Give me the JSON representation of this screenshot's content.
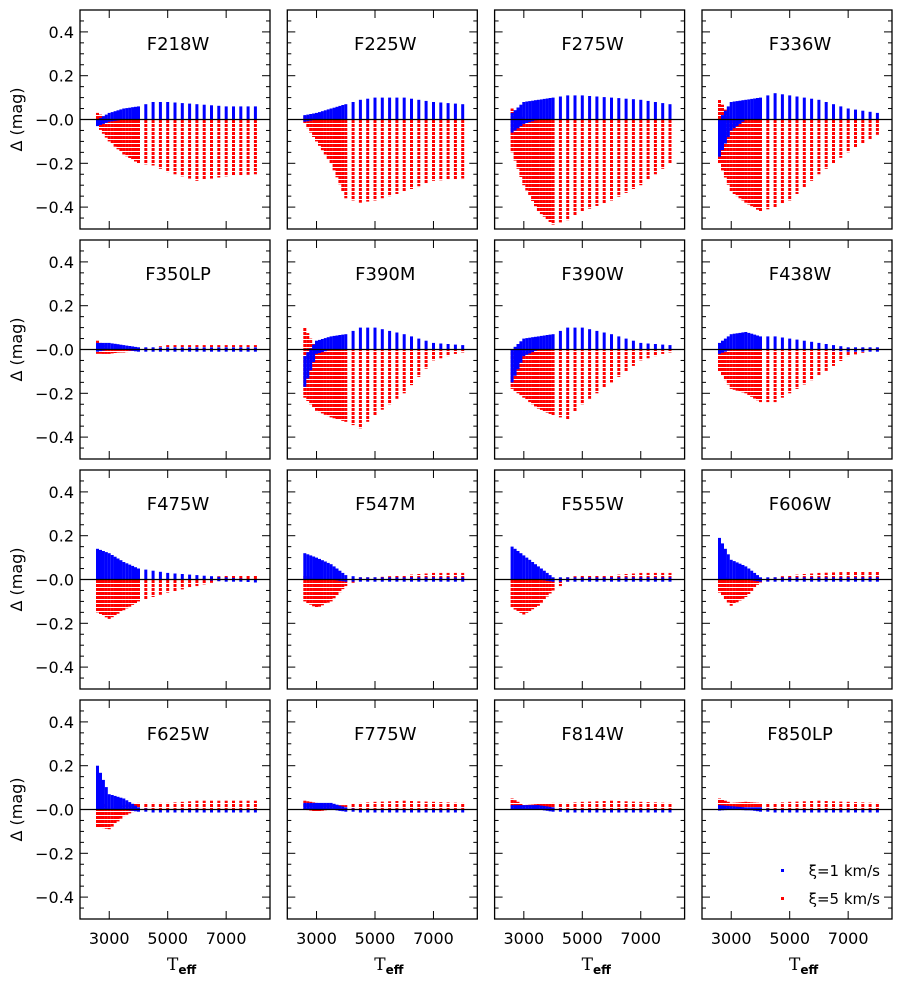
{
  "chart_data": {
    "type": "scatter",
    "layout": "4x4 grid of panels",
    "xlabel": "T",
    "xlabel_sub": "eff",
    "ylabel": "Δ (mag)",
    "xlim": [
      2000,
      8500
    ],
    "ylim": [
      -0.5,
      0.5
    ],
    "xticks": [
      "3000",
      "5000",
      "7000"
    ],
    "yticks": [
      "0.4",
      "0.2",
      "−0.0",
      "−0.2",
      "−0.4"
    ],
    "reference_line_y": 0,
    "grid": false,
    "legend": {
      "placement": "bottom-right of last panel",
      "entries": [
        {
          "label": "ξ=1 km/s",
          "color": "#0000ff"
        },
        {
          "label": "ξ=5 km/s",
          "color": "#ff0000"
        }
      ]
    },
    "envelope_teff": [
      2600,
      3000,
      3500,
      4000,
      4500,
      5000,
      6000,
      7000,
      8000
    ],
    "panels": [
      {
        "title": "F218W",
        "blue": {
          "upper": [
            0.0,
            0.03,
            0.05,
            0.06,
            0.08,
            0.08,
            0.07,
            0.06,
            0.06
          ],
          "lower": [
            -0.03,
            -0.01,
            0,
            0,
            0,
            0,
            0,
            0,
            0
          ]
        },
        "red": {
          "upper": [
            0.03,
            0,
            0,
            0,
            0,
            0,
            0,
            0,
            0
          ],
          "lower": [
            -0.03,
            -0.1,
            -0.16,
            -0.2,
            -0.21,
            -0.24,
            -0.28,
            -0.26,
            -0.25
          ]
        }
      },
      {
        "title": "F225W",
        "blue": {
          "upper": [
            0.02,
            0.03,
            0.05,
            0.07,
            0.09,
            0.1,
            0.1,
            0.08,
            0.07
          ],
          "lower": [
            -0.01,
            0,
            0,
            0,
            0,
            0,
            0,
            0,
            0
          ]
        },
        "red": {
          "upper": [
            0.02,
            0,
            0,
            0,
            0,
            0,
            0,
            0,
            0
          ],
          "lower": [
            -0.02,
            -0.1,
            -0.2,
            -0.36,
            -0.38,
            -0.37,
            -0.33,
            -0.28,
            -0.27
          ]
        }
      },
      {
        "title": "F275W",
        "blue": {
          "upper": [
            0.03,
            0.08,
            0.09,
            0.1,
            0.11,
            0.11,
            0.1,
            0.09,
            0.07
          ],
          "lower": [
            -0.06,
            -0.02,
            0,
            0,
            0,
            0,
            0,
            0,
            0
          ]
        },
        "red": {
          "upper": [
            0.05,
            0,
            0,
            0,
            0,
            0,
            0,
            0,
            0
          ],
          "lower": [
            -0.15,
            -0.3,
            -0.42,
            -0.48,
            -0.46,
            -0.42,
            -0.37,
            -0.3,
            -0.2
          ]
        }
      },
      {
        "title": "F336W",
        "blue": {
          "upper": [
            0.0,
            0.08,
            0.09,
            0.1,
            0.12,
            0.11,
            0.09,
            0.05,
            0.03
          ],
          "lower": [
            -0.17,
            -0.05,
            0,
            0,
            0,
            0,
            0,
            0,
            0
          ]
        },
        "red": {
          "upper": [
            0.09,
            0,
            0,
            0,
            0,
            0,
            0,
            0,
            0
          ],
          "lower": [
            -0.2,
            -0.33,
            -0.38,
            -0.42,
            -0.4,
            -0.37,
            -0.25,
            -0.15,
            -0.07
          ]
        }
      },
      {
        "title": "F350LP",
        "blue": {
          "upper": [
            0.03,
            0.03,
            0.02,
            0.01,
            0.01,
            0.01,
            0.01,
            0.01,
            0.01
          ],
          "lower": [
            -0.01,
            0,
            0,
            -0.01,
            -0.01,
            -0.01,
            -0.01,
            -0.01,
            -0.01
          ]
        },
        "red": {
          "upper": [
            0.04,
            0,
            0,
            0.01,
            0.01,
            0.02,
            0.02,
            0.02,
            0.02
          ],
          "lower": [
            -0.02,
            -0.02,
            -0.01,
            0,
            0,
            0,
            0,
            0,
            0
          ]
        }
      },
      {
        "title": "F390M",
        "blue": {
          "upper": [
            -0.03,
            0.04,
            0.06,
            0.07,
            0.1,
            0.1,
            0.07,
            0.03,
            0.02
          ],
          "lower": [
            -0.17,
            -0.02,
            0,
            0,
            0,
            0,
            0,
            0,
            0
          ]
        },
        "red": {
          "upper": [
            0.1,
            0,
            0,
            0,
            0,
            0,
            0,
            0,
            0
          ],
          "lower": [
            -0.22,
            -0.28,
            -0.31,
            -0.33,
            -0.36,
            -0.3,
            -0.2,
            -0.05,
            -0.01
          ]
        }
      },
      {
        "title": "F390W",
        "blue": {
          "upper": [
            0.0,
            0.05,
            0.06,
            0.07,
            0.1,
            0.1,
            0.07,
            0.03,
            0.02
          ],
          "lower": [
            -0.15,
            -0.03,
            0,
            0,
            0,
            0,
            0,
            0,
            0
          ]
        },
        "red": {
          "upper": [
            0,
            0,
            0,
            0,
            0,
            0,
            0,
            0,
            0
          ],
          "lower": [
            -0.18,
            -0.22,
            -0.27,
            -0.3,
            -0.32,
            -0.25,
            -0.15,
            -0.05,
            -0.01
          ]
        }
      },
      {
        "title": "F438W",
        "blue": {
          "upper": [
            0.03,
            0.07,
            0.08,
            0.06,
            0.06,
            0.05,
            0.03,
            0.01,
            0.01
          ],
          "lower": [
            -0.02,
            0,
            0,
            0,
            0,
            0,
            0,
            -0.01,
            -0.01
          ]
        },
        "red": {
          "upper": [
            0.02,
            0,
            0,
            0,
            0,
            0,
            0,
            0.01,
            0.01
          ],
          "lower": [
            -0.1,
            -0.18,
            -0.2,
            -0.24,
            -0.24,
            -0.2,
            -0.12,
            -0.03,
            0
          ]
        }
      },
      {
        "title": "F475W",
        "blue": {
          "upper": [
            0.14,
            0.12,
            0.08,
            0.05,
            0.04,
            0.03,
            0.02,
            0.01,
            0.0
          ],
          "lower": [
            0,
            0,
            0,
            0,
            0,
            0,
            0,
            -0.01,
            -0.01
          ]
        },
        "red": {
          "upper": [
            0,
            0,
            0,
            0,
            0,
            0,
            0,
            0.02,
            0.02
          ],
          "lower": [
            -0.15,
            -0.18,
            -0.14,
            -0.1,
            -0.08,
            -0.06,
            -0.03,
            0,
            0
          ]
        }
      },
      {
        "title": "F547M",
        "blue": {
          "upper": [
            0.12,
            0.1,
            0.07,
            0.02,
            0.01,
            0.01,
            0.01,
            0.01,
            0.01
          ],
          "lower": [
            0,
            0,
            0,
            -0.01,
            -0.01,
            -0.01,
            -0.01,
            -0.01,
            -0.01
          ]
        },
        "red": {
          "upper": [
            0.02,
            0,
            0,
            0,
            0.01,
            0.01,
            0.02,
            0.03,
            0.03
          ],
          "lower": [
            -0.1,
            -0.13,
            -0.1,
            -0.03,
            0,
            0,
            0,
            0,
            0
          ]
        }
      },
      {
        "title": "F555W",
        "blue": {
          "upper": [
            0.15,
            0.11,
            0.06,
            0.01,
            0.01,
            0.01,
            0.01,
            0.01,
            0.01
          ],
          "lower": [
            0,
            0,
            0,
            -0.01,
            -0.01,
            -0.01,
            -0.01,
            -0.01,
            -0.01
          ]
        },
        "red": {
          "upper": [
            0,
            0,
            0,
            0,
            0.01,
            0.02,
            0.02,
            0.03,
            0.03
          ],
          "lower": [
            -0.13,
            -0.16,
            -0.12,
            -0.05,
            -0.01,
            0,
            0,
            0,
            0
          ]
        }
      },
      {
        "title": "F606W",
        "blue": {
          "upper": [
            0.19,
            0.09,
            0.06,
            0.01,
            0.01,
            0.01,
            0.01,
            0.01,
            0.01
          ],
          "lower": [
            0,
            0,
            0,
            -0.01,
            -0.01,
            -0.01,
            -0.01,
            -0.01,
            -0.01
          ]
        },
        "red": {
          "upper": [
            0.02,
            0,
            0,
            0,
            0.01,
            0.02,
            0.03,
            0.035,
            0.035
          ],
          "lower": [
            -0.06,
            -0.12,
            -0.08,
            -0.01,
            0,
            0,
            0,
            0,
            0
          ]
        }
      },
      {
        "title": "F625W",
        "blue": {
          "upper": [
            0.2,
            0.07,
            0.05,
            0.01,
            0,
            0,
            0,
            0,
            0
          ],
          "lower": [
            0,
            0,
            0,
            -0.01,
            -0.01,
            -0.01,
            -0.01,
            -0.01,
            -0.01
          ]
        },
        "red": {
          "upper": [
            0.05,
            0,
            0.02,
            0.03,
            0.03,
            0.03,
            0.04,
            0.04,
            0.04
          ],
          "lower": [
            -0.08,
            -0.09,
            -0.03,
            0,
            0,
            0,
            0,
            0,
            0
          ]
        }
      },
      {
        "title": "F775W",
        "blue": {
          "upper": [
            0.03,
            0.03,
            0.03,
            0.01,
            0,
            0,
            0,
            0,
            0
          ],
          "lower": [
            0,
            0,
            0,
            -0.01,
            -0.01,
            -0.01,
            -0.01,
            -0.01,
            -0.01
          ]
        },
        "red": {
          "upper": [
            0.04,
            0.03,
            0.02,
            0.02,
            0.03,
            0.035,
            0.04,
            0.035,
            0.03
          ],
          "lower": [
            0,
            -0.01,
            0,
            0,
            0,
            0,
            0,
            0,
            0
          ]
        }
      },
      {
        "title": "F814W",
        "blue": {
          "upper": [
            0.02,
            0.02,
            0.02,
            0.01,
            0,
            0,
            0,
            0,
            0
          ],
          "lower": [
            0,
            0,
            0,
            -0.01,
            -0.01,
            -0.01,
            -0.01,
            -0.01,
            -0.01
          ]
        },
        "red": {
          "upper": [
            0.05,
            0.02,
            0.025,
            0.03,
            0.03,
            0.035,
            0.04,
            0.035,
            0.03
          ],
          "lower": [
            0,
            0,
            0,
            0,
            0,
            0,
            0,
            0,
            0
          ]
        }
      },
      {
        "title": "F850LP",
        "blue": {
          "upper": [
            0.02,
            0.015,
            0.01,
            0.01,
            0,
            0,
            0,
            0,
            0
          ],
          "lower": [
            -0.005,
            0,
            0,
            -0.01,
            -0.01,
            -0.01,
            -0.01,
            -0.01,
            -0.01
          ]
        },
        "red": {
          "upper": [
            0.05,
            0.03,
            0.035,
            0.03,
            0.03,
            0.035,
            0.04,
            0.035,
            0.03
          ],
          "lower": [
            0,
            0,
            0,
            0,
            0,
            0,
            0,
            0,
            0
          ]
        }
      }
    ]
  }
}
